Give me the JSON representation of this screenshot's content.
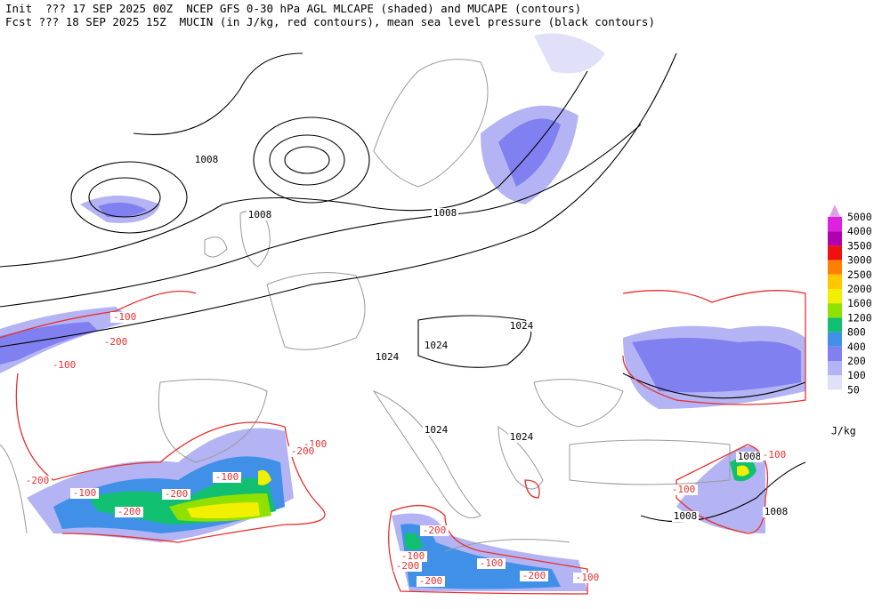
{
  "header": {
    "line1": "Init  ??? 17 SEP 2025 00Z  NCEP GFS 0-30 hPa AGL MLCAPE (shaded) and MUCAPE (contours)",
    "line2": "Fcst ??? 18 SEP 2025 15Z  MUCIN (in J/kg, red contours), mean sea level pressure (black contours)"
  },
  "legend": {
    "entries": [
      {
        "label": 5000,
        "color": "#e0a0e8"
      },
      {
        "label": 4000,
        "color": "#e020e0"
      },
      {
        "label": 3500,
        "color": "#b000b0"
      },
      {
        "label": 3000,
        "color": "#f01010"
      },
      {
        "label": 2500,
        "color": "#ff8000"
      },
      {
        "label": 2000,
        "color": "#ffc800"
      },
      {
        "label": 1600,
        "color": "#f0f000"
      },
      {
        "label": 1200,
        "color": "#90e000"
      },
      {
        "label": 800,
        "color": "#10c070"
      },
      {
        "label": 400,
        "color": "#4090e8"
      },
      {
        "label": 200,
        "color": "#8080f0"
      },
      {
        "label": 100,
        "color": "#b4b4f4"
      },
      {
        "label": 50,
        "color": "#e0e0f8"
      }
    ],
    "units": "J/kg"
  },
  "pressure_labels": [
    1008,
    1008,
    1008,
    1024,
    1024,
    1024,
    1024,
    1024,
    1008,
    1008,
    1008
  ],
  "cin_labels": [
    -100,
    -200,
    -100,
    -200,
    -100,
    -200,
    -200,
    -100,
    -100,
    -200,
    -200,
    -200,
    -200,
    -100,
    -200,
    -100,
    -100,
    -100,
    -100
  ]
}
